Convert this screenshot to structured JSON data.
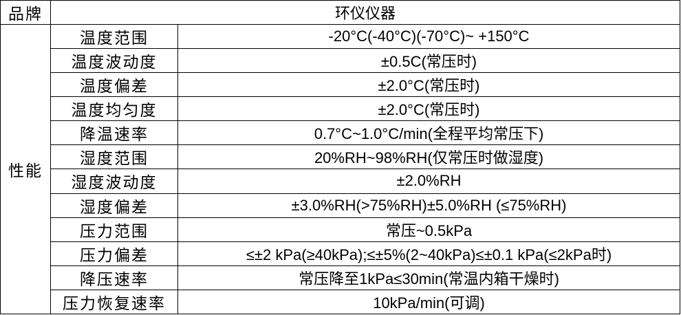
{
  "table": {
    "brand_label": "品牌",
    "brand_value": "环仪仪器",
    "performance_label": "性能",
    "rows": [
      {
        "param": "温度范围",
        "value": "-20°C(-40°C)(-70°C)~ +150°C"
      },
      {
        "param": "温度波动度",
        "value": "±0.5C(常压时)"
      },
      {
        "param": "温度偏差",
        "value": "±2.0°C(常压时)"
      },
      {
        "param": "温度均匀度",
        "value": "±2.0°C(常压时)"
      },
      {
        "param": "降温速率",
        "value": "0.7°C~1.0°C/min(全程平均常压下)"
      },
      {
        "param": "湿度范围",
        "value": "20%RH~98%RH(仅常压时做湿度)"
      },
      {
        "param": "湿度波动度",
        "value": "±2.0%RH"
      },
      {
        "param": "湿度偏差",
        "value": "±3.0%RH(>75%RH)±5.0%RH (≤75%RH)"
      },
      {
        "param": "压力范围",
        "value": "常压~0.5kPa"
      },
      {
        "param": "压力偏差",
        "value": "≤±2 kPa(≥40kPa);≤±5%(2~40kPa)≤±0.1 kPa(≤2kPa时)"
      },
      {
        "param": "降压速率",
        "value": "常压降至1kPa≤30min(常温内箱干燥时)"
      },
      {
        "param": "压力恢复速率",
        "value": "10kPa/min(可调)"
      }
    ],
    "colors": {
      "border": "#000000",
      "background": "#ffffff",
      "text": "#000000"
    }
  }
}
